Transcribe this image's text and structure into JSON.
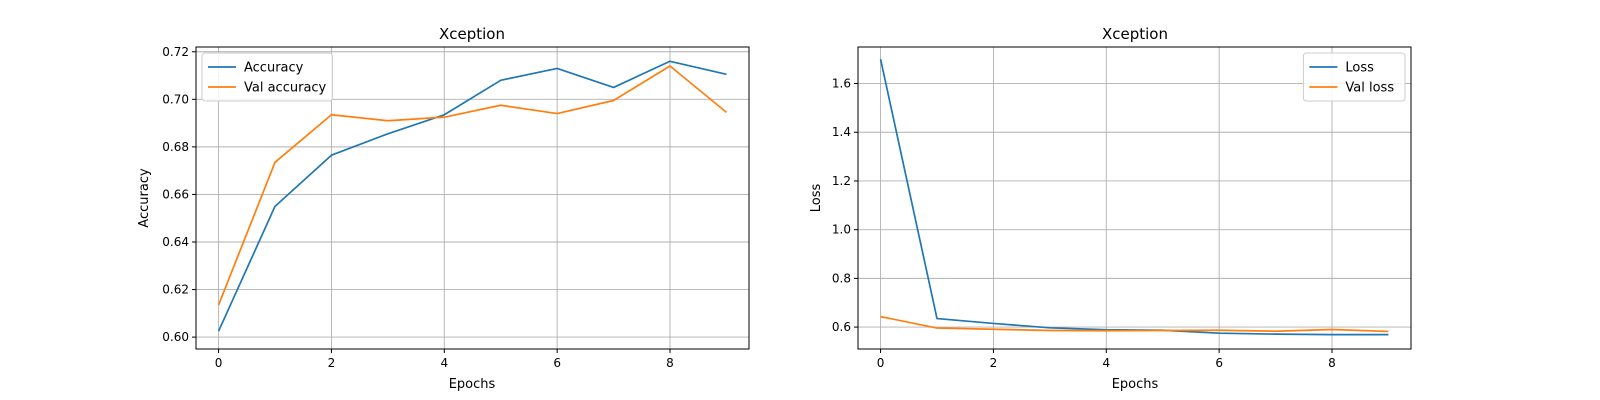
{
  "colors": {
    "series_a": "#1f77b4",
    "series_b": "#ff7f0e",
    "grid": "#b0b0b0",
    "axes": "#000000"
  },
  "chart_data": [
    {
      "type": "line",
      "title": "Xception",
      "xlabel": "Epochs",
      "ylabel": "Accuracy",
      "xlim": [
        -0.4,
        9.4
      ],
      "ylim": [
        0.595,
        0.722
      ],
      "xticks": [
        0,
        2,
        4,
        6,
        8
      ],
      "xtick_labels": [
        "0",
        "2",
        "4",
        "6",
        "8"
      ],
      "yticks": [
        0.6,
        0.62,
        0.64,
        0.66,
        0.68,
        0.7,
        0.72
      ],
      "ytick_labels": [
        "0.60",
        "0.62",
        "0.64",
        "0.66",
        "0.68",
        "0.70",
        "0.72"
      ],
      "grid": true,
      "legend_position": "upper-left",
      "x": [
        0,
        1,
        2,
        3,
        4,
        5,
        6,
        7,
        8,
        9
      ],
      "series": [
        {
          "name": "Accuracy",
          "color": "#1f77b4",
          "values": [
            0.6025,
            0.655,
            0.6765,
            0.6855,
            0.6935,
            0.708,
            0.713,
            0.705,
            0.716,
            0.7105
          ]
        },
        {
          "name": "Val accuracy",
          "color": "#ff7f0e",
          "values": [
            0.6135,
            0.6735,
            0.6935,
            0.691,
            0.6925,
            0.6975,
            0.694,
            0.6995,
            0.714,
            0.6945
          ]
        }
      ]
    },
    {
      "type": "line",
      "title": "Xception",
      "xlabel": "Epochs",
      "ylabel": "Loss",
      "xlim": [
        -0.4,
        9.4
      ],
      "ylim": [
        0.51,
        1.75
      ],
      "xticks": [
        0,
        2,
        4,
        6,
        8
      ],
      "xtick_labels": [
        "0",
        "2",
        "4",
        "6",
        "8"
      ],
      "yticks": [
        0.6,
        0.8,
        1.0,
        1.2,
        1.4,
        1.6
      ],
      "ytick_labels": [
        "0.6",
        "0.8",
        "1.0",
        "1.2",
        "1.4",
        "1.6"
      ],
      "grid": true,
      "legend_position": "upper-right",
      "x": [
        0,
        1,
        2,
        3,
        4,
        5,
        6,
        7,
        8,
        9
      ],
      "series": [
        {
          "name": "Loss",
          "color": "#1f77b4",
          "values": [
            1.7,
            0.635,
            0.615,
            0.597,
            0.589,
            0.587,
            0.575,
            0.571,
            0.569,
            0.569
          ]
        },
        {
          "name": "Val loss",
          "color": "#ff7f0e",
          "values": [
            0.643,
            0.596,
            0.591,
            0.586,
            0.585,
            0.586,
            0.587,
            0.583,
            0.59,
            0.582
          ]
        }
      ]
    }
  ]
}
